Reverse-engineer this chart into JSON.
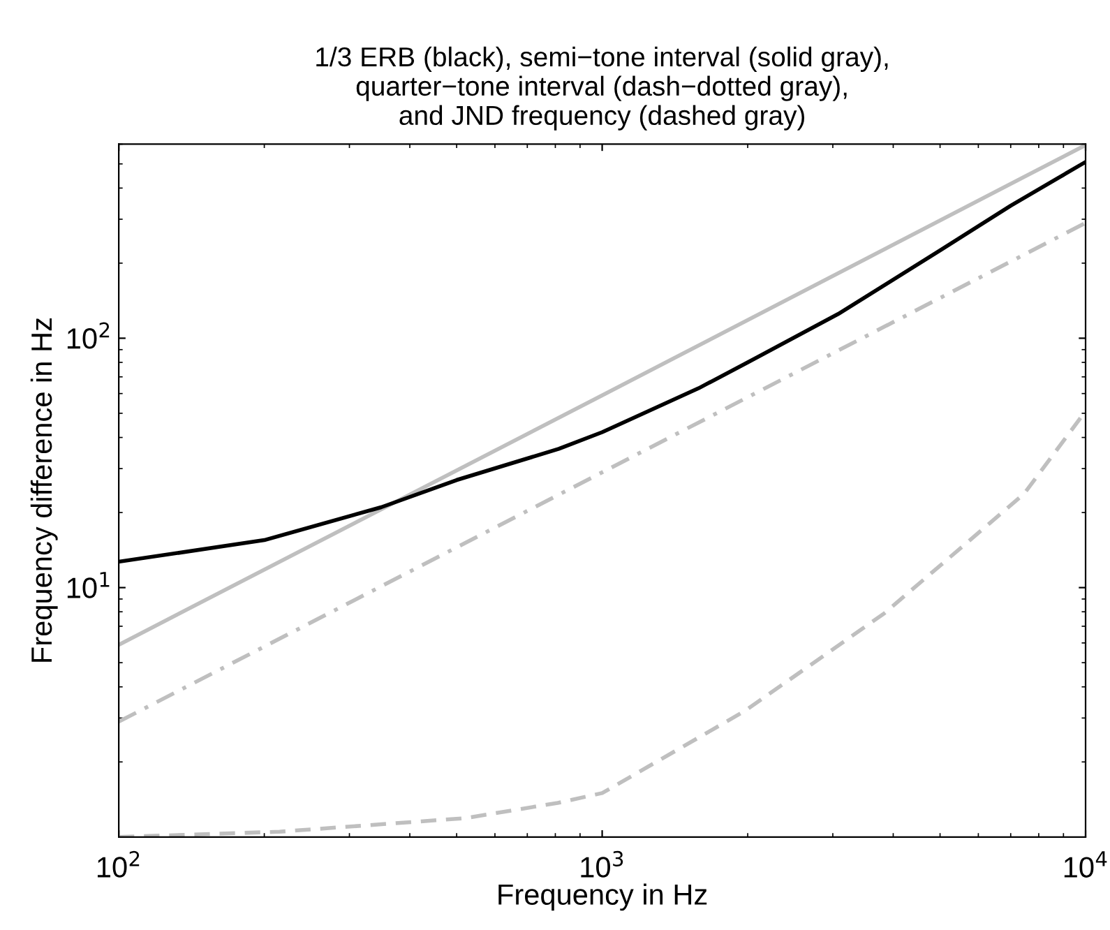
{
  "chart_data": {
    "type": "line",
    "title": "1/3 ERB (black), semi−tone interval (solid gray),\nquarter−tone interval (dash−dotted gray),\nand JND frequency (dashed gray)",
    "xlabel": "Frequency in Hz",
    "ylabel": "Frequency difference in Hz",
    "log": "xy",
    "grid": false,
    "legend": false,
    "xlim": [
      100,
      10000
    ],
    "xticks": [
      {
        "value": 100,
        "label": "10$^{2}$"
      },
      {
        "value": 1000,
        "label": "10$^{3}$"
      },
      {
        "value": 10000,
        "label": "10$^{4}$"
      }
    ],
    "ylim": [
      1,
      600
    ],
    "yticks": [
      {
        "value": 10,
        "label": "10$^{1}$"
      },
      {
        "value": 100,
        "label": "10$^{2}$"
      }
    ],
    "series": [
      {
        "color": "#bfbfbf",
        "line_style": "solid",
        "x": [
          100,
          1000,
          10000
        ],
        "values": [
          5.9,
          59,
          595
        ]
      },
      {
        "color": "#bfbfbf",
        "line_style": "dashdot",
        "x": [
          100,
          1000,
          10000
        ],
        "values": [
          2.9,
          29,
          290
        ]
      },
      {
        "color": "#bfbfbf",
        "line_style": "dashed",
        "x": [
          100,
          215,
          521,
          809,
          1000,
          1972,
          3838,
          7463,
          10000
        ],
        "values": [
          1.0,
          1.05,
          1.19,
          1.37,
          1.5,
          3.2,
          7.9,
          23.8,
          51
        ]
      },
      {
        "color": "#000000",
        "line_style": "solid",
        "x": [
          100,
          200,
          349,
          500,
          813,
          1000,
          1583,
          2000,
          3076,
          5000,
          7000,
          10000
        ],
        "values": [
          12.7,
          15.5,
          21,
          27,
          36,
          42,
          63,
          80,
          125,
          225,
          340,
          509
        ]
      }
    ]
  }
}
